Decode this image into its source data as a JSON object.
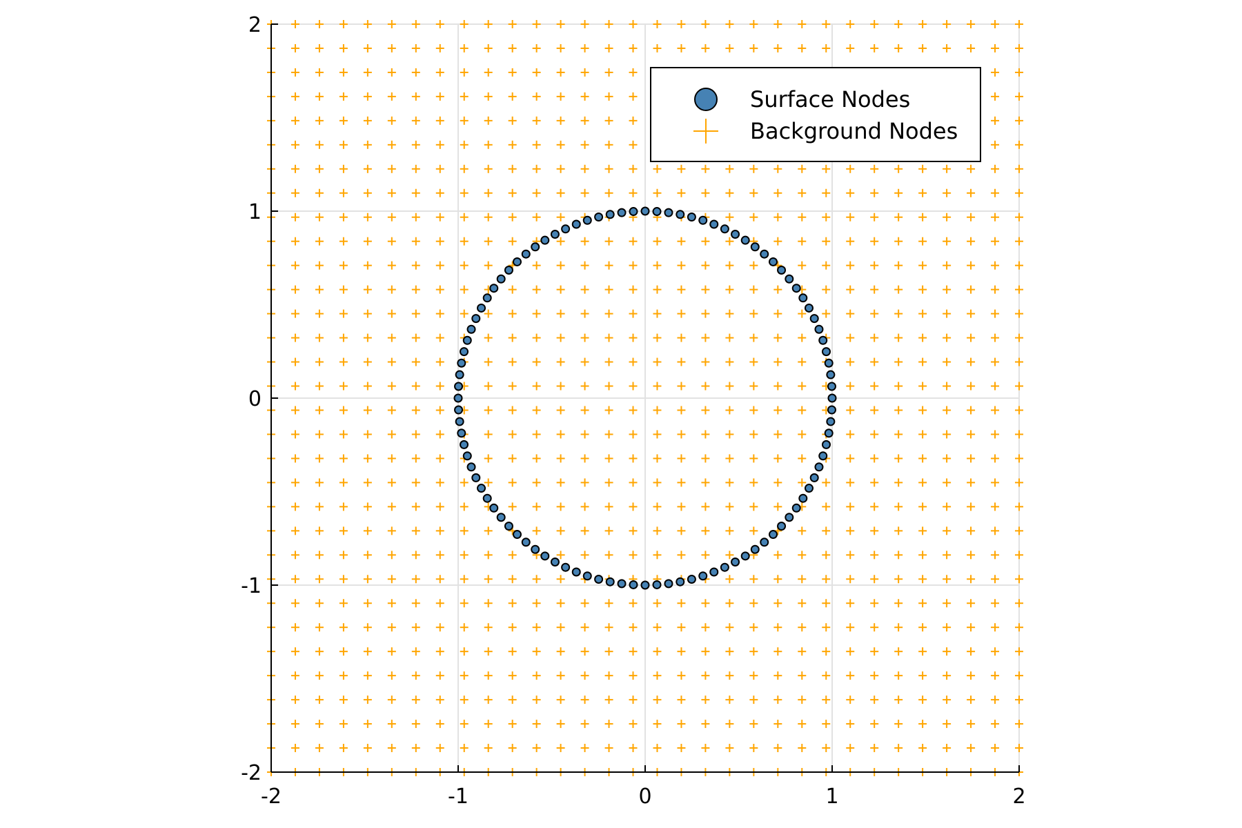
{
  "chart_data": {
    "type": "scatter",
    "xlim": [
      -2,
      2
    ],
    "ylim": [
      -2,
      2
    ],
    "xticks": [
      -2,
      -1,
      0,
      1,
      2
    ],
    "yticks": [
      -2,
      -1,
      0,
      1,
      2
    ],
    "xtick_labels": [
      "-2",
      "-1",
      "0",
      "1",
      "2"
    ],
    "ytick_labels": [
      "-2",
      "-1",
      "0",
      "1",
      "2"
    ],
    "grid": true,
    "aspect": "equal",
    "legend_position": "top-right",
    "series": [
      {
        "name": "Surface Nodes",
        "marker": "circle",
        "color": "#4682B4",
        "edge_color": "#000000",
        "shape": "circle",
        "center": [
          0,
          0
        ],
        "radius": 1,
        "count": 100
      },
      {
        "name": "Background Nodes",
        "marker": "plus",
        "color": "#FFA500",
        "shape": "grid",
        "x_range": [
          -2,
          2
        ],
        "y_range": [
          -2,
          2
        ],
        "step": 0.129
      }
    ]
  }
}
